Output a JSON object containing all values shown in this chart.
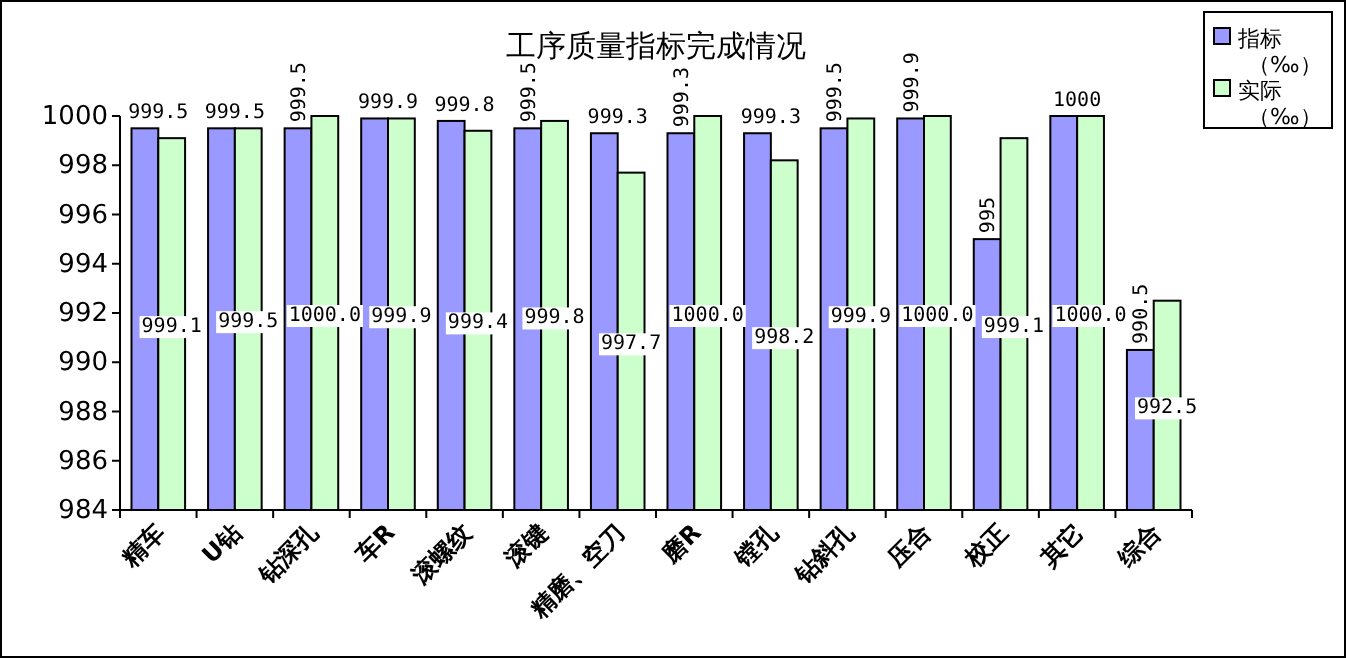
{
  "chart_data": {
    "type": "bar",
    "title": "工序质量指标完成情况",
    "categories": [
      "精车",
      "U钻",
      "钻深孔",
      "车R",
      "滚螺纹",
      "滚键",
      "精磨、空刀",
      "磨R",
      "镗孔",
      "钻斜孔",
      "压合",
      "校正",
      "其它",
      "综合"
    ],
    "series": [
      {
        "name": "指标（‰）",
        "color": "#9999ff",
        "values": [
          999.5,
          999.5,
          999.5,
          999.9,
          999.8,
          999.5,
          999.3,
          999.3,
          999.3,
          999.5,
          999.9,
          995,
          1000,
          990.5
        ],
        "value_labels": [
          "999.5",
          "999.5",
          "999.5",
          "999.9",
          "999.8",
          "999.5",
          "999.3",
          "999.3",
          "999.3",
          "999.5",
          "999.9",
          "995",
          "1000",
          "990.5"
        ]
      },
      {
        "name": "实际（‰）",
        "color": "#ccffcc",
        "values": [
          999.1,
          999.5,
          1000.0,
          999.9,
          999.4,
          999.8,
          997.7,
          1000.0,
          998.2,
          999.9,
          1000.0,
          999.1,
          1000.0,
          992.5
        ],
        "value_labels": [
          "999.1",
          "999.5",
          "1000.0",
          "999.9",
          "999.4",
          "999.8",
          "997.7",
          "1000.0",
          "998.2",
          "999.9",
          "1000.0",
          "999.1",
          "1000.0",
          "992.5"
        ]
      }
    ],
    "ylim": [
      984,
      1000
    ],
    "yticks": [
      984,
      986,
      988,
      990,
      992,
      994,
      996,
      998,
      1000
    ],
    "legend": "top right",
    "grid": false
  }
}
